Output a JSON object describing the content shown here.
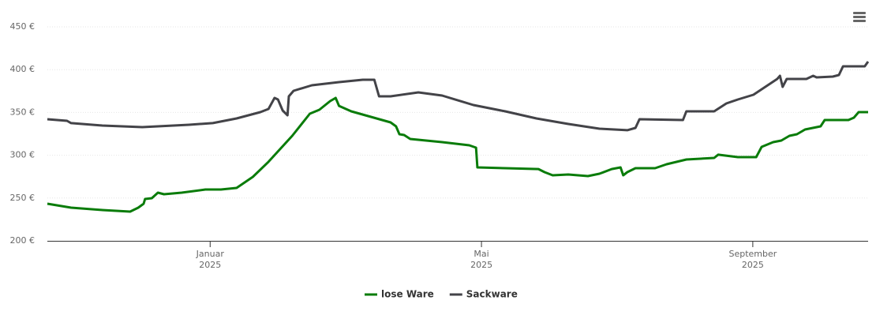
{
  "chart_data": {
    "type": "line",
    "series": [
      {
        "name": "lose Ware",
        "color": "#0a7c0a",
        "x": [
          -2.4,
          -2.05,
          -1.59,
          -1.18,
          -1.06,
          -0.98,
          -0.96,
          -0.86,
          -0.77,
          -0.68,
          -0.42,
          -0.07,
          0.16,
          0.39,
          0.63,
          0.86,
          1.21,
          1.47,
          1.61,
          1.77,
          1.85,
          1.9,
          2.08,
          2.37,
          2.66,
          2.74,
          2.79,
          2.86,
          2.95,
          3.42,
          3.82,
          3.92,
          3.94,
          4.35,
          4.84,
          4.93,
          5.05,
          5.28,
          5.57,
          5.74,
          5.92,
          6.05,
          6.09,
          6.15,
          6.27,
          6.56,
          6.73,
          7.02,
          7.43,
          7.49,
          7.78,
          8.05,
          8.13,
          8.3,
          8.42,
          8.54,
          8.65,
          8.77,
          9.0,
          9.06,
          9.41,
          9.49,
          9.56,
          9.7
        ],
        "values": [
          243.4,
          238.7,
          236,
          234.1,
          238.7,
          243.4,
          248.9,
          249.8,
          256.3,
          254.4,
          256.3,
          260,
          260,
          261.8,
          274.7,
          292.3,
          322.7,
          348.5,
          353.1,
          363.3,
          367,
          357.7,
          351.3,
          344.8,
          338.4,
          333.8,
          324.5,
          323.6,
          319,
          315.3,
          311.6,
          308.9,
          285.8,
          284.9,
          283.9,
          280.3,
          276.6,
          277.5,
          275.6,
          278.4,
          283.9,
          285.8,
          276.6,
          280.3,
          284.9,
          284.9,
          289.5,
          295,
          296.9,
          300.6,
          297.8,
          297.8,
          309.8,
          315.3,
          317.2,
          322.7,
          324.5,
          330.1,
          333.8,
          341.1,
          341.1,
          343.9,
          350.4,
          350.4
        ]
      },
      {
        "name": "Sackware",
        "color": "#434348",
        "x": [
          -2.4,
          -2.11,
          -2.05,
          -1.59,
          -1.0,
          -0.31,
          0.04,
          0.39,
          0.74,
          0.86,
          0.95,
          1.0,
          1.07,
          1.14,
          1.16,
          1.23,
          1.5,
          1.9,
          2.25,
          2.42,
          2.49,
          2.66,
          3.07,
          3.42,
          3.88,
          4.35,
          4.81,
          5.28,
          5.74,
          6.15,
          6.27,
          6.33,
          6.97,
          7.02,
          7.43,
          7.61,
          7.78,
          8.01,
          8.36,
          8.4,
          8.44,
          8.5,
          8.79,
          8.89,
          8.94,
          9.18,
          9.27,
          9.33,
          9.65,
          9.7
        ],
        "values": [
          342.1,
          340.2,
          337.5,
          334.7,
          332.8,
          335.6,
          337.5,
          343,
          350.4,
          354.1,
          367,
          365.1,
          352.2,
          346.7,
          368.8,
          375.3,
          381.7,
          385.4,
          388.2,
          388.2,
          368.8,
          368.8,
          373.4,
          369.7,
          358.7,
          351.3,
          343,
          336.5,
          331,
          329.2,
          331.9,
          342.1,
          341.1,
          351.3,
          351.3,
          360.5,
          365.1,
          370.7,
          389.1,
          392.8,
          379.9,
          389.1,
          389.1,
          392.8,
          391,
          391.9,
          393.7,
          403.9,
          403.9,
          409.4
        ]
      }
    ],
    "xlim": [
      -2.4,
      9.7
    ],
    "xticks": [
      {
        "value": 0,
        "label": "Januar 2025"
      },
      {
        "value": 4,
        "label": "Mai 2025"
      },
      {
        "value": 8,
        "label": "September 2025"
      }
    ],
    "ylim": [
      200,
      450
    ],
    "yticks": [
      {
        "value": 200,
        "label": "200 €"
      },
      {
        "value": 250,
        "label": "250 €"
      },
      {
        "value": 300,
        "label": "300 €"
      },
      {
        "value": 350,
        "label": "350 €"
      },
      {
        "value": 400,
        "label": "400 €"
      },
      {
        "value": 450,
        "label": "450 €"
      }
    ],
    "grid": true
  }
}
